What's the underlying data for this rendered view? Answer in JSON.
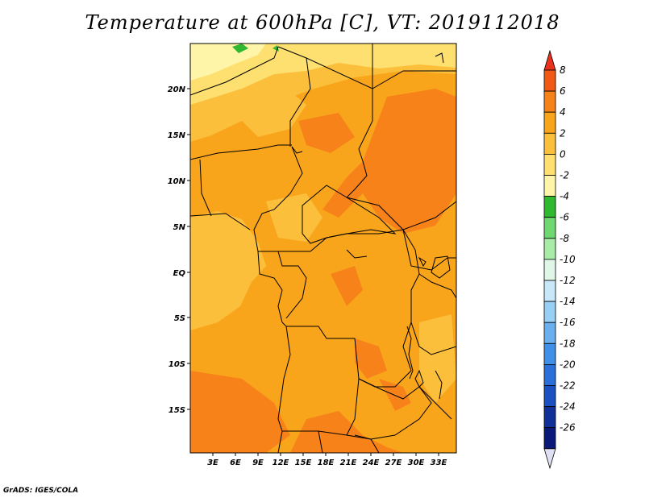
{
  "title": "Temperature at 600hPa [C], VT: 2019112018",
  "credit": "GrADS: IGES/COLA",
  "map": {
    "lat_ticks": [
      "20N",
      "15N",
      "10N",
      "5N",
      "EQ",
      "5S",
      "10S",
      "15S"
    ],
    "lon_ticks": [
      "3E",
      "6E",
      "9E",
      "12E",
      "15E",
      "18E",
      "21E",
      "24E",
      "27E",
      "30E",
      "33E"
    ]
  },
  "colorbar": {
    "labels": [
      "8",
      "6",
      "4",
      "2",
      "0",
      "-2",
      "-4",
      "-6",
      "-8",
      "-10",
      "-12",
      "-14",
      "-16",
      "-18",
      "-20",
      "-22",
      "-24",
      "-26"
    ],
    "colors": [
      "#e8321e",
      "#f05a14",
      "#f7821a",
      "#f9a51c",
      "#fbbf3c",
      "#fde070",
      "#fff5a8",
      "#30b830",
      "#70d870",
      "#a8eca8",
      "#e0f7e8",
      "#c8e8fa",
      "#98d0f5",
      "#6ab0ef",
      "#4090e8",
      "#2a70d8",
      "#1a50c0",
      "#103098",
      "#0a1878",
      "#e0e0f5"
    ]
  }
}
